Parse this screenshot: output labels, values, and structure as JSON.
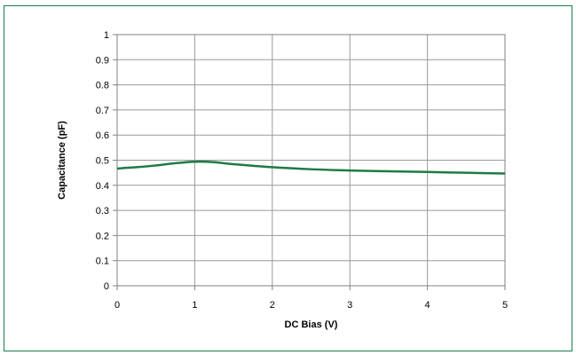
{
  "chart_data": {
    "type": "line",
    "title": "",
    "xlabel": "DC Bias (V)",
    "ylabel": "Capacitance (pF)",
    "xlim": [
      0,
      5
    ],
    "ylim": [
      0,
      1
    ],
    "x_ticks": [
      "0",
      "1",
      "2",
      "3",
      "4",
      "5"
    ],
    "y_ticks": [
      "0",
      "0.1",
      "0.2",
      "0.3",
      "0.4",
      "0.5",
      "0.6",
      "0.7",
      "0.8",
      "0.9",
      "1"
    ],
    "grid": true,
    "legend": "none",
    "series": [
      {
        "color": "#1e7a46",
        "x": [
          0,
          0.25,
          0.5,
          0.75,
          1.0,
          1.25,
          1.5,
          2.0,
          2.5,
          3.0,
          3.5,
          4.0,
          4.5,
          5.0
        ],
        "y": [
          0.467,
          0.472,
          0.479,
          0.488,
          0.494,
          0.492,
          0.484,
          0.472,
          0.464,
          0.459,
          0.456,
          0.453,
          0.45,
          0.447
        ]
      }
    ]
  }
}
